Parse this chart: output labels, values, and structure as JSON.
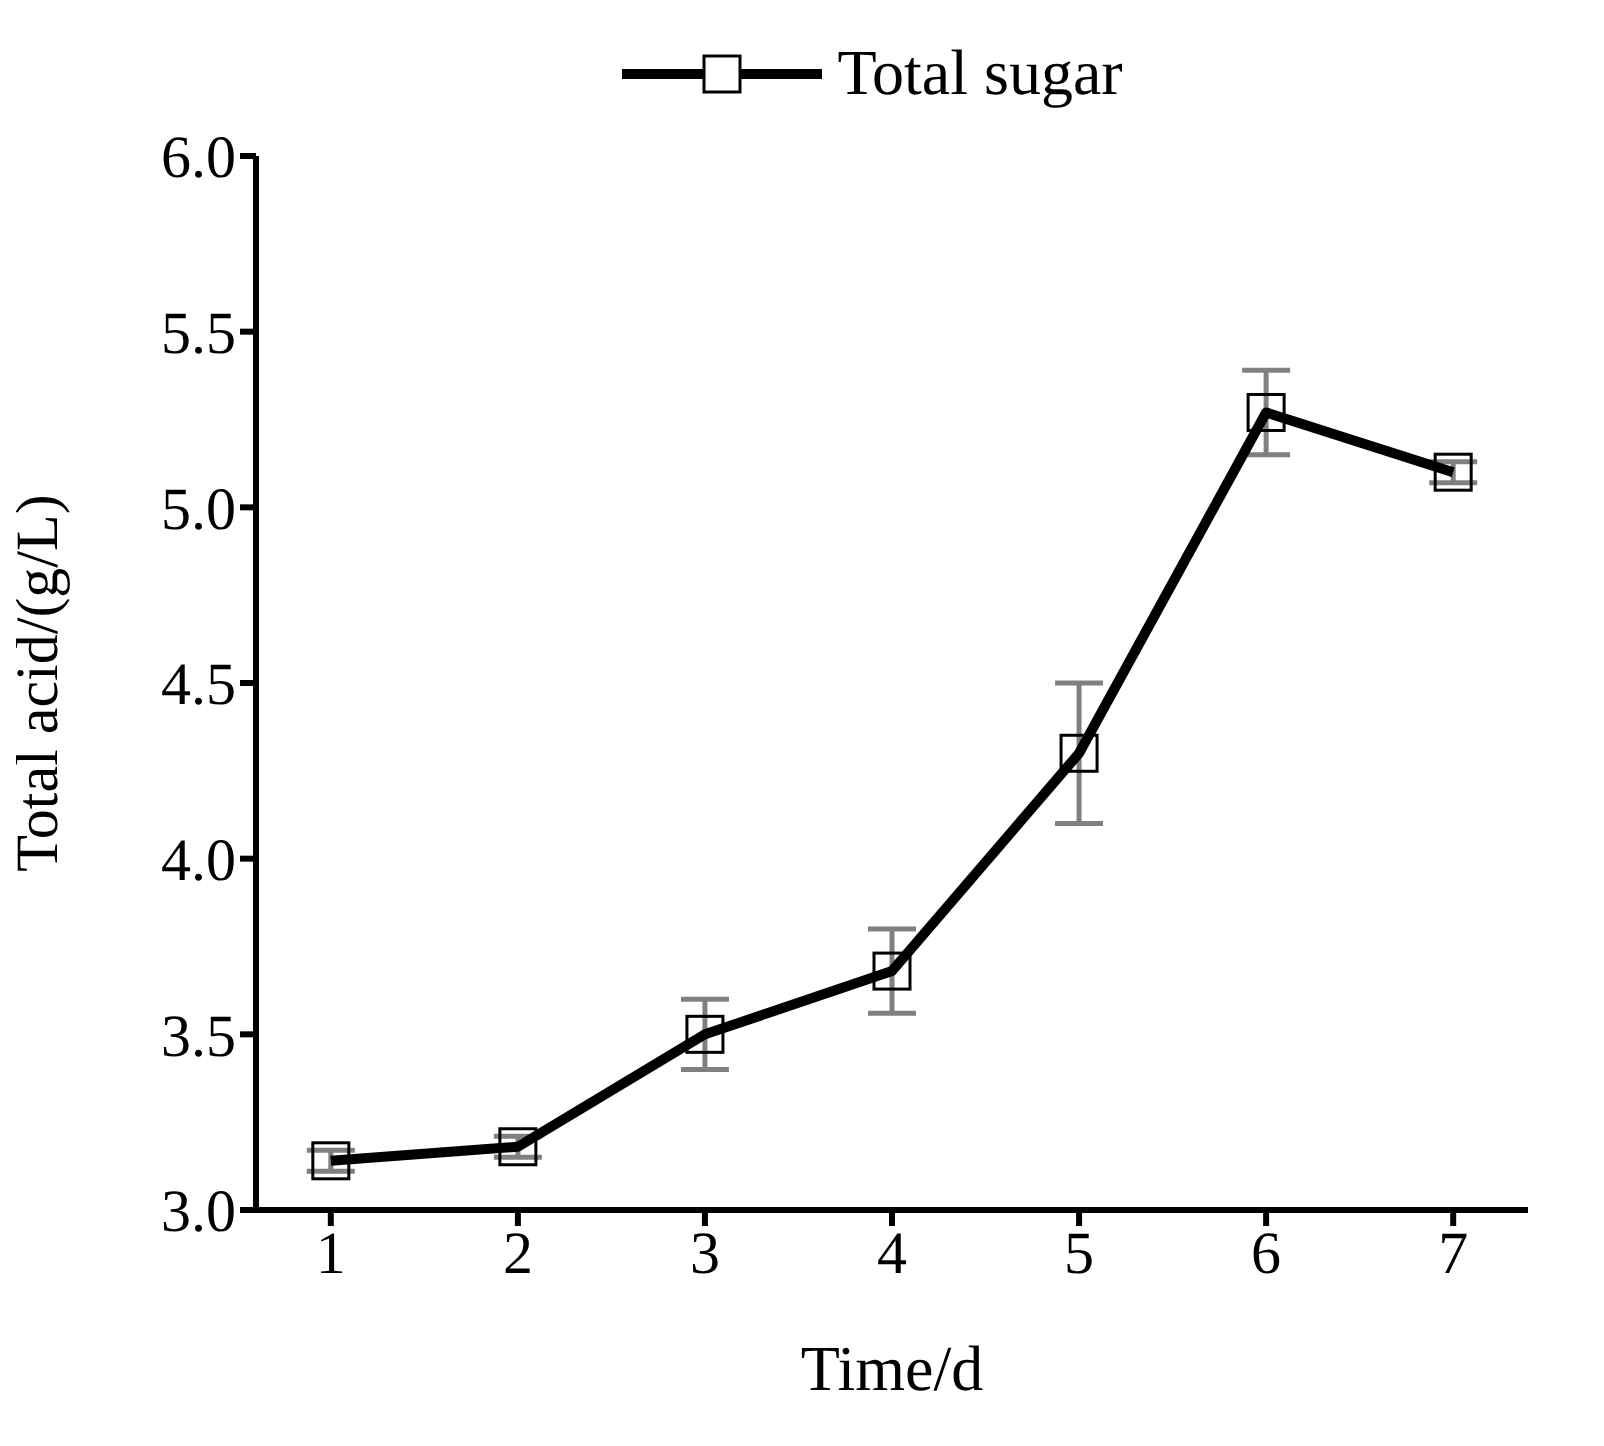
{
  "chart_data": {
    "type": "line",
    "xlabel": "Time/d",
    "ylabel": "Total acid/(g/L)",
    "x": [
      1,
      2,
      3,
      4,
      5,
      6,
      7
    ],
    "series": [
      {
        "name": "Total sugar",
        "color": "#000000",
        "values": [
          3.14,
          3.18,
          3.5,
          3.68,
          4.3,
          5.27,
          5.1
        ],
        "errors": [
          0.03,
          0.03,
          0.1,
          0.12,
          0.2,
          0.12,
          0.03
        ]
      }
    ],
    "xlim": [
      0.6,
      7.4
    ],
    "xticks": [
      1,
      2,
      3,
      4,
      5,
      6,
      7
    ],
    "ylim": [
      3.0,
      6.0
    ],
    "yticks": [
      {
        "value": 3,
        "label": "3.0"
      },
      {
        "value": 3.5,
        "label": "3.5"
      },
      {
        "value": 4,
        "label": "4.0"
      },
      {
        "value": 4.5,
        "label": "4.5"
      },
      {
        "value": 5,
        "label": "5.0"
      },
      {
        "value": 5.5,
        "label": "5.5"
      },
      {
        "value": 6,
        "label": "6.0"
      }
    ],
    "grid": false,
    "legend": "top",
    "marker": "square",
    "line_style": "solid"
  }
}
